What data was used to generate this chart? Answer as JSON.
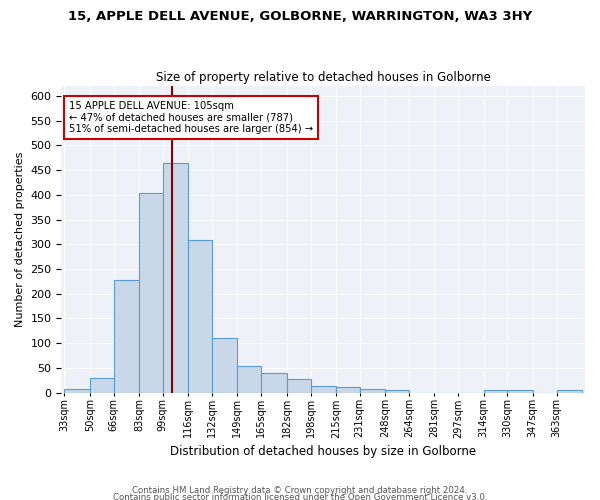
{
  "title1": "15, APPLE DELL AVENUE, GOLBORNE, WARRINGTON, WA3 3HY",
  "title2": "Size of property relative to detached houses in Golborne",
  "xlabel": "Distribution of detached houses by size in Golborne",
  "ylabel": "Number of detached properties",
  "footer1": "Contains HM Land Registry data © Crown copyright and database right 2024.",
  "footer2": "Contains public sector information licensed under the Open Government Licence v3.0.",
  "categories": [
    "33sqm",
    "50sqm",
    "66sqm",
    "83sqm",
    "99sqm",
    "116sqm",
    "132sqm",
    "149sqm",
    "165sqm",
    "182sqm",
    "198sqm",
    "215sqm",
    "231sqm",
    "248sqm",
    "264sqm",
    "281sqm",
    "297sqm",
    "314sqm",
    "330sqm",
    "347sqm",
    "363sqm"
  ],
  "values": [
    7,
    30,
    228,
    403,
    465,
    308,
    111,
    54,
    39,
    27,
    14,
    12,
    8,
    6,
    0,
    0,
    0,
    5,
    5,
    0,
    5
  ],
  "bar_color": "#c8d8e8",
  "bar_edge_color": "#5b9bd5",
  "vline_x": 105,
  "vline_color": "#8b0000",
  "annotation_text": "15 APPLE DELL AVENUE: 105sqm\n← 47% of detached houses are smaller (787)\n51% of semi-detached houses are larger (854) →",
  "annotation_box_color": "white",
  "annotation_box_edge": "#cc0000",
  "ylim": [
    0,
    620
  ],
  "yticks": [
    0,
    50,
    100,
    150,
    200,
    250,
    300,
    350,
    400,
    450,
    500,
    550,
    600
  ],
  "bin_edges": [
    33,
    50,
    66,
    83,
    99,
    116,
    132,
    149,
    165,
    182,
    198,
    215,
    231,
    248,
    264,
    281,
    297,
    314,
    330,
    347,
    363,
    380
  ]
}
